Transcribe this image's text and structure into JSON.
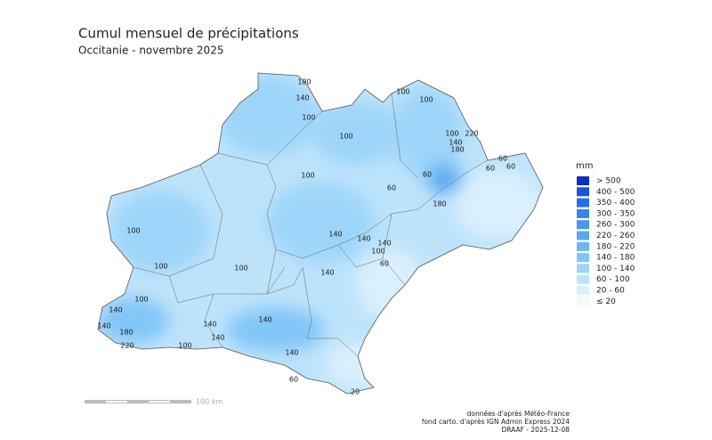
{
  "header": {
    "title": "Cumul mensuel de précipitations",
    "subtitle": "Occitanie - novembre 2025"
  },
  "legend": {
    "title": "mm",
    "items": [
      {
        "label": "> 500",
        "color": "#0b2fbf"
      },
      {
        "label": "400 - 500",
        "color": "#1a52e0"
      },
      {
        "label": "350 - 400",
        "color": "#2a6ce8"
      },
      {
        "label": "300 - 350",
        "color": "#3a82ec"
      },
      {
        "label": "260 - 300",
        "color": "#4a95ef"
      },
      {
        "label": "220 - 260",
        "color": "#5aa6f2"
      },
      {
        "label": "180 - 220",
        "color": "#6cb6f5"
      },
      {
        "label": "140 - 180",
        "color": "#82c6f8"
      },
      {
        "label": "100 - 140",
        "color": "#9dd5fa"
      },
      {
        "label": "60 - 100",
        "color": "#bde3fb"
      },
      {
        "label": "20 - 60",
        "color": "#daf0fd"
      },
      {
        "label": "≤ 20",
        "color": "#f1f9fe"
      }
    ]
  },
  "contour_labels": [
    "180",
    "140",
    "100",
    "100",
    "100",
    "100",
    "220",
    "100",
    "140",
    "180",
    "60",
    "60",
    "60",
    "60",
    "100",
    "60",
    "180",
    "100",
    "140",
    "140",
    "140",
    "100",
    "60",
    "140",
    "100",
    "100",
    "100",
    "140",
    "140",
    "180",
    "220",
    "140",
    "140",
    "140",
    "100",
    "140",
    "60",
    "20"
  ],
  "scale_bar": {
    "label": "100 km"
  },
  "credits": [
    "données d'après Météo-France",
    "fond carto. d'après IGN Admin Express 2024",
    "DRAAF - 2025-12-08"
  ]
}
